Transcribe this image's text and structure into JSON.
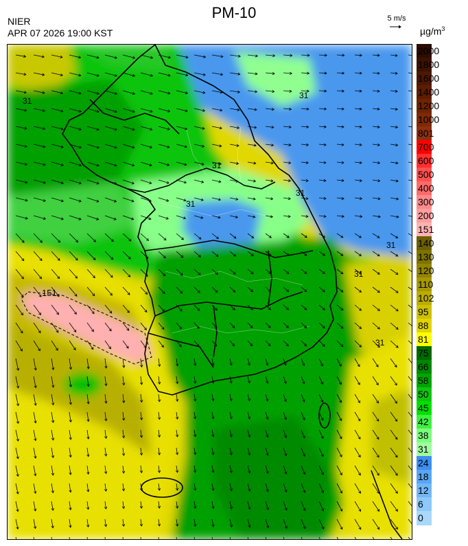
{
  "header": {
    "title": "PM-10",
    "agency": "NIER",
    "timestamp": "APR 07 2026 19:00 KST",
    "reference_vector": "5 m/s",
    "unit_base": "µg/m",
    "unit_exponent": "3"
  },
  "map": {
    "contour_labels": [
      "151",
      "31",
      "31",
      "31",
      "31",
      "31",
      "31",
      "31",
      "31"
    ]
  },
  "legend": {
    "ticks": [
      "2000",
      "1800",
      "1600",
      "1400",
      "1200",
      "1000",
      "801",
      "700",
      "600",
      "500",
      "400",
      "300",
      "200",
      "151",
      "140",
      "130",
      "120",
      "110",
      "102",
      "95",
      "88",
      "81",
      "75",
      "66",
      "58",
      "50",
      "45",
      "42",
      "38",
      "31",
      "24",
      "18",
      "12",
      "6",
      "0"
    ],
    "colors": [
      "#2b0c00",
      "#3c1200",
      "#4d1800",
      "#5d1d00",
      "#6e2400",
      "#7e2a04",
      "#8e3010",
      "#ff0000",
      "#ff3030",
      "#ff5050",
      "#ff6a6a",
      "#ff8a8a",
      "#ff9e9e",
      "#ffb2b2",
      "#6a6000",
      "#7e7200",
      "#928400",
      "#a69800",
      "#baac00",
      "#cec000",
      "#e2d400",
      "#ffff00",
      "#006a00",
      "#008800",
      "#00a600",
      "#10c410",
      "#00e000",
      "#40f040",
      "#7cff7c",
      "#a0ffa0",
      "#3c8ef0",
      "#58a6f4",
      "#72b6f6",
      "#8ec8f8",
      "#a8d8fa"
    ]
  }
}
